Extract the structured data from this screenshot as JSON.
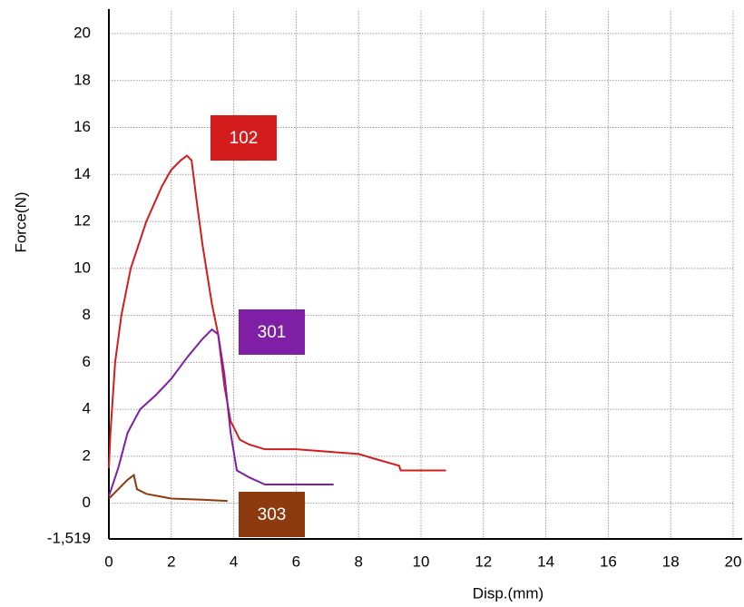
{
  "chart_data": {
    "type": "line",
    "x_label": "Disp.(mm)",
    "y_label": "Force(N)",
    "xlim": [
      0,
      20
    ],
    "ylim": [
      -1.519,
      20
    ],
    "xticks": [
      0,
      2,
      4,
      6,
      8,
      10,
      12,
      14,
      16,
      18,
      20
    ],
    "yticks": [
      {
        "value": -1.519,
        "label": "-1,519"
      },
      0,
      2,
      4,
      6,
      8,
      10,
      12,
      14,
      16,
      18,
      20
    ],
    "grid": true,
    "series": [
      {
        "name": "102",
        "color": "#d41c1c",
        "x": [
          0,
          0.05,
          0.2,
          0.4,
          0.7,
          1.2,
          1.7,
          2,
          2.3,
          2.5,
          2.65,
          2.8,
          3,
          3.3,
          3.5,
          3.7,
          3.9,
          4.2,
          4.5,
          5,
          6,
          7,
          8,
          8.5,
          9.3,
          9.35,
          10.8
        ],
        "values": [
          1.5,
          3,
          6,
          8,
          10,
          12,
          13.5,
          14.2,
          14.6,
          14.8,
          14.6,
          13,
          11,
          8.5,
          7.2,
          5,
          3.5,
          2.7,
          2.5,
          2.3,
          2.3,
          2.2,
          2.1,
          1.9,
          1.6,
          1.4,
          1.4
        ]
      },
      {
        "name": "301",
        "color": "#7e1fa6",
        "x": [
          0,
          0.3,
          0.6,
          1,
          1.5,
          2,
          2.5,
          3,
          3.3,
          3.5,
          3.7,
          3.9,
          4.1,
          4.5,
          5,
          7.2
        ],
        "values": [
          0.3,
          1.5,
          3,
          4,
          4.6,
          5.3,
          6.2,
          7,
          7.4,
          7.2,
          5.5,
          3,
          1.4,
          1.1,
          0.8,
          0.8
        ]
      },
      {
        "name": "303",
        "color": "#8c3a0e",
        "x": [
          0,
          0.3,
          0.6,
          0.8,
          0.9,
          1.2,
          2,
          3,
          3.8
        ],
        "values": [
          0.2,
          0.6,
          1,
          1.2,
          0.6,
          0.4,
          0.2,
          0.15,
          0.1
        ]
      }
    ]
  }
}
